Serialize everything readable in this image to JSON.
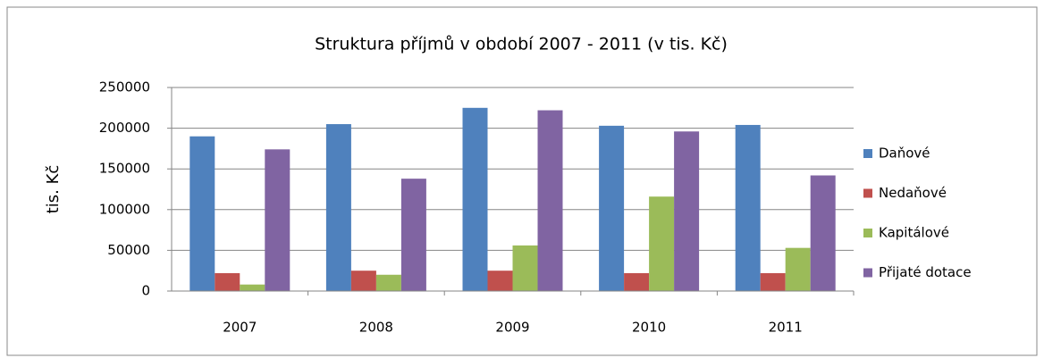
{
  "chart_data": {
    "type": "bar",
    "title": "Struktura příjmů v období 2007 - 2011 (v tis. Kč)",
    "y_label": "tis. Kč",
    "categories": [
      "2007",
      "2008",
      "2009",
      "2010",
      "2011"
    ],
    "series": [
      {
        "name": "Daňové",
        "color": "#4f81bd",
        "values": [
          190000,
          205000,
          225000,
          203000,
          204000
        ]
      },
      {
        "name": "Nedaňové",
        "color": "#c0504d",
        "values": [
          22000,
          25000,
          25000,
          22000,
          22000
        ]
      },
      {
        "name": "Kapitálové",
        "color": "#9bbb59",
        "values": [
          8000,
          20000,
          56000,
          116000,
          53000
        ]
      },
      {
        "name": "Přijaté dotace",
        "color": "#8064a2",
        "values": [
          174000,
          138000,
          222000,
          196000,
          142000
        ]
      }
    ],
    "ylim": [
      0,
      250000
    ],
    "yticks": [
      0,
      50000,
      100000,
      150000,
      200000,
      250000
    ],
    "grid": true,
    "legend": "right"
  }
}
